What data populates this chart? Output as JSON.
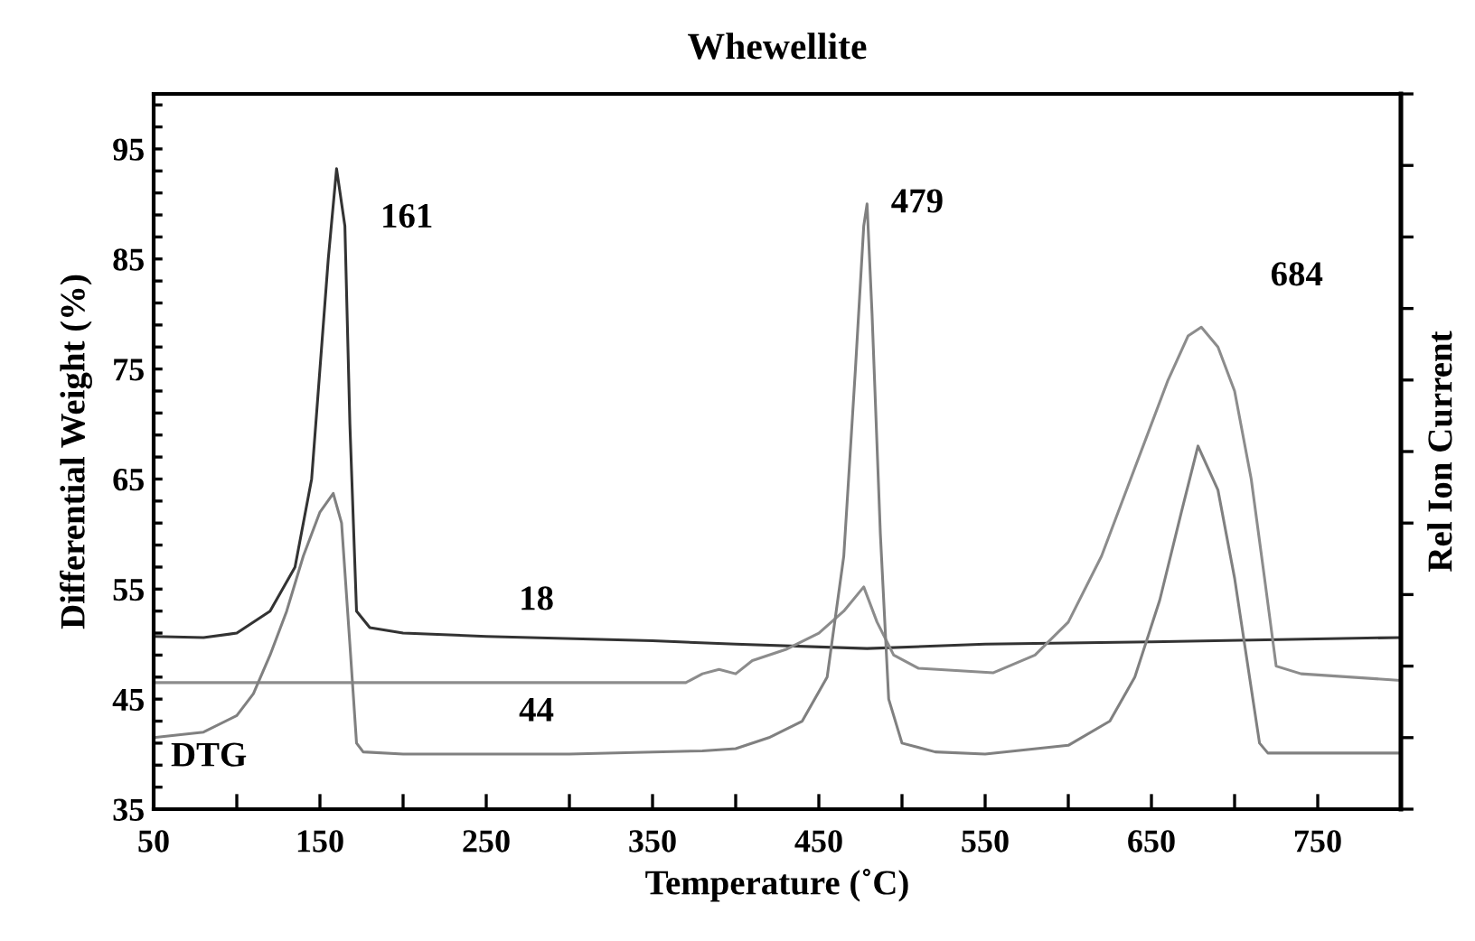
{
  "chart_data": {
    "type": "line",
    "title": "Whewellite",
    "xlabel": "Temperature (˚C)",
    "ylabel": "Differential Weight (%)",
    "y2label": "Rel Ion Current",
    "xlim": [
      50,
      800
    ],
    "xticks": [
      50,
      {
        "value": 100,
        "label": null
      },
      150,
      {
        "value": 200,
        "label": null
      },
      250,
      {
        "value": 300,
        "label": null
      },
      350,
      {
        "value": 400,
        "label": null
      },
      450,
      {
        "value": 500,
        "label": null
      },
      550,
      {
        "value": 600,
        "label": null
      },
      650,
      {
        "value": 700,
        "label": null
      },
      750,
      {
        "value": 800,
        "label": null
      }
    ],
    "ylim": [
      35,
      100
    ],
    "yticks": [
      35,
      {
        "value": 37,
        "label": null
      },
      {
        "value": 39,
        "label": null
      },
      {
        "value": 41,
        "label": null
      },
      {
        "value": 43,
        "label": null
      },
      45,
      {
        "value": 47,
        "label": null
      },
      {
        "value": 49,
        "label": null
      },
      {
        "value": 51,
        "label": null
      },
      {
        "value": 53,
        "label": null
      },
      55,
      {
        "value": 57,
        "label": null
      },
      {
        "value": 59,
        "label": null
      },
      {
        "value": 61,
        "label": null
      },
      {
        "value": 63,
        "label": null
      },
      65,
      {
        "value": 67,
        "label": null
      },
      {
        "value": 69,
        "label": null
      },
      {
        "value": 71,
        "label": null
      },
      {
        "value": 73,
        "label": null
      },
      75,
      {
        "value": 77,
        "label": null
      },
      {
        "value": 79,
        "label": null
      },
      {
        "value": 81,
        "label": null
      },
      {
        "value": 83,
        "label": null
      },
      85,
      {
        "value": 87,
        "label": null
      },
      {
        "value": 89,
        "label": null
      },
      {
        "value": 91,
        "label": null
      },
      {
        "value": 93,
        "label": null
      },
      95,
      {
        "value": 97,
        "label": null
      },
      {
        "value": 99,
        "label": null
      }
    ],
    "grid": false,
    "marker": "none",
    "line_style": "solid",
    "series": [
      {
        "color": "#333333",
        "x": [
          50,
          80,
          100,
          120,
          135,
          145,
          150,
          155,
          160,
          165,
          168,
          172,
          180,
          200,
          250,
          350,
          400,
          479,
          550,
          650,
          800
        ],
        "values": [
          50.7,
          50.6,
          51,
          53,
          57,
          65,
          75,
          85,
          93.2,
          88,
          70,
          53,
          51.5,
          51,
          50.7,
          50.3,
          50,
          49.6,
          50,
          50.2,
          50.6
        ]
      },
      {
        "color": "#8c8c8c",
        "x": [
          50,
          370,
          380,
          390,
          400,
          410,
          430,
          450,
          465,
          477,
          485,
          495,
          510,
          555,
          580,
          600,
          620,
          640,
          660,
          672,
          680,
          690,
          700,
          710,
          718,
          725,
          740,
          800
        ],
        "values": [
          46.5,
          46.5,
          47.3,
          47.7,
          47.3,
          48.5,
          49.5,
          51,
          53,
          55.2,
          52,
          49,
          47.8,
          47.4,
          49,
          52,
          58,
          66,
          74,
          78,
          78.8,
          77,
          73,
          65,
          56,
          48,
          47.3,
          46.7
        ]
      },
      {
        "color": "#808080",
        "x": [
          50,
          80,
          100,
          110,
          120,
          130,
          140,
          150,
          158,
          163,
          168,
          172,
          176,
          200,
          300,
          380,
          400,
          420,
          440,
          455,
          465,
          472,
          477,
          479,
          482,
          487,
          492,
          500,
          520,
          550,
          600,
          625,
          640,
          655,
          668,
          678,
          690,
          700,
          710,
          715,
          720,
          800
        ],
        "values": [
          41.5,
          42,
          43.5,
          45.5,
          49,
          53,
          58,
          62,
          63.7,
          61,
          50,
          41,
          40.2,
          40,
          40,
          40.3,
          40.5,
          41.5,
          43,
          47,
          58,
          75,
          88,
          90,
          80,
          60,
          45,
          41,
          40.2,
          40,
          40.8,
          43,
          47,
          54,
          62,
          68,
          64,
          56,
          46,
          41,
          40.1,
          40.1
        ]
      }
    ],
    "annotations": [
      {
        "text": "161",
        "x": 160,
        "y": 93.2
      },
      {
        "text": "479",
        "x": 479,
        "y": 90
      },
      {
        "text": "684",
        "x": 680,
        "y": 78.8
      },
      {
        "text": "18",
        "x": 250,
        "y": 50.7
      },
      {
        "text": "44",
        "x": 250,
        "y": 46.5
      },
      {
        "text": "DTG",
        "x": 50,
        "y": 41.5
      }
    ]
  }
}
